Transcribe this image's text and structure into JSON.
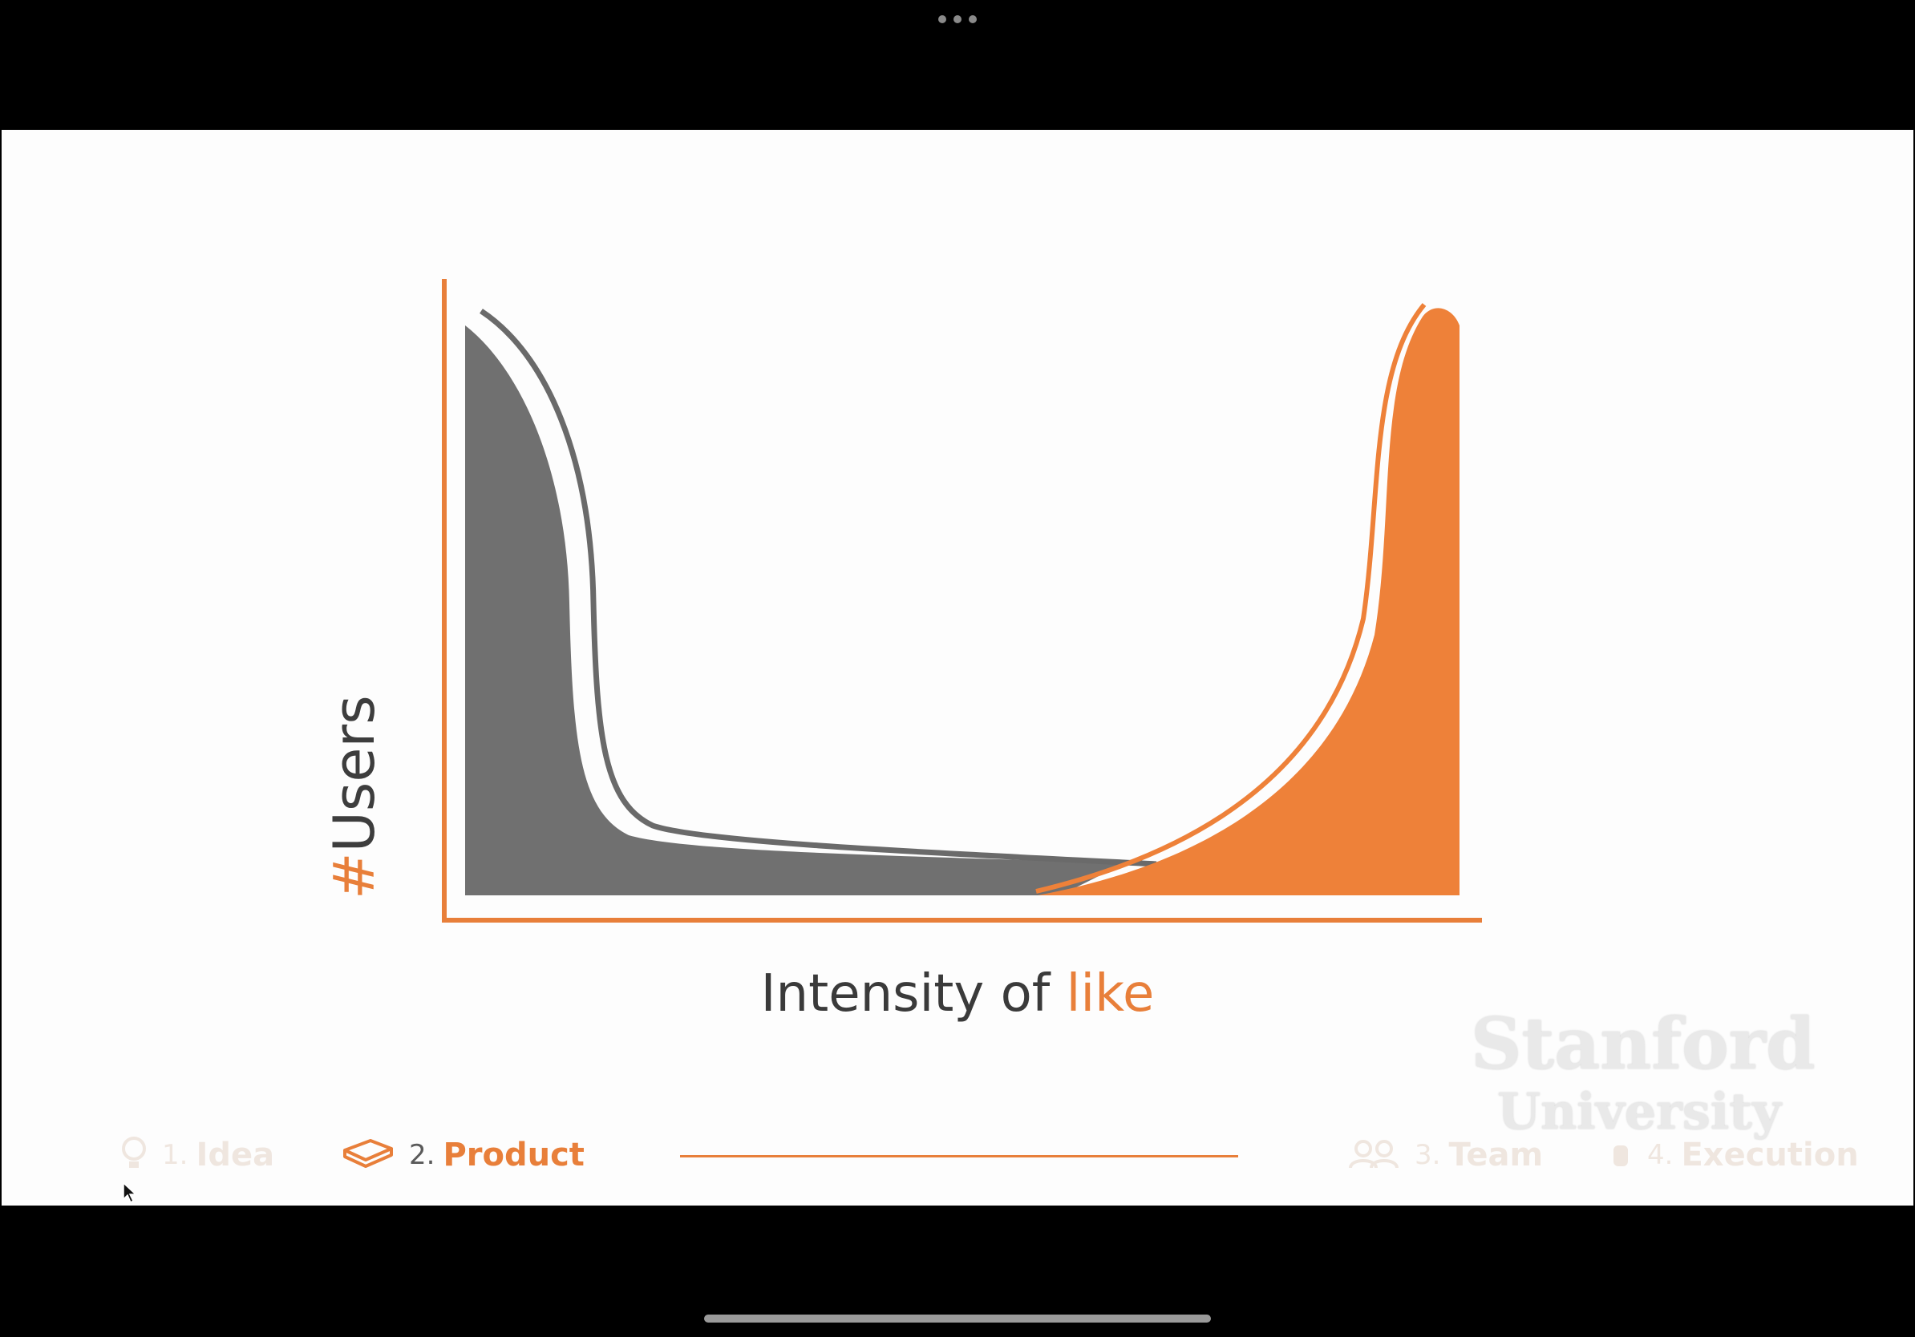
{
  "slide": {
    "y_label_hash": "#",
    "y_label_text": "Users",
    "x_label_main": "Intensity of ",
    "x_label_accent": "like",
    "watermark_name": "Stanford",
    "watermark_sub": "University"
  },
  "footer": {
    "items": [
      {
        "num": "1.",
        "label": "Idea",
        "icon": "lightbulb-icon"
      },
      {
        "num": "2.",
        "label": "Product",
        "icon": "box-icon"
      },
      {
        "num": "3.",
        "label": "Team",
        "icon": "people-icon"
      },
      {
        "num": "4.",
        "label": "Execution",
        "icon": "hand-icon"
      }
    ],
    "active_index": 1
  },
  "colors": {
    "accent": "#e87f3a",
    "gray_fill": "#707070",
    "background": "#fdfdfd",
    "frame": "#000000"
  },
  "chart_data": {
    "type": "area",
    "xlabel": "Intensity of like",
    "ylabel": "#Users",
    "axes_ticks": false,
    "series": [
      {
        "values": [
          1.0,
          0.75,
          0.38,
          0.12,
          0.08,
          0.05,
          0.03,
          0.0
        ],
        "color": "#707070"
      },
      {
        "values": [
          0.0,
          0.03,
          0.08,
          0.2,
          0.45,
          0.98,
          0.96,
          0.0
        ],
        "color": "#e87f3a"
      }
    ]
  }
}
